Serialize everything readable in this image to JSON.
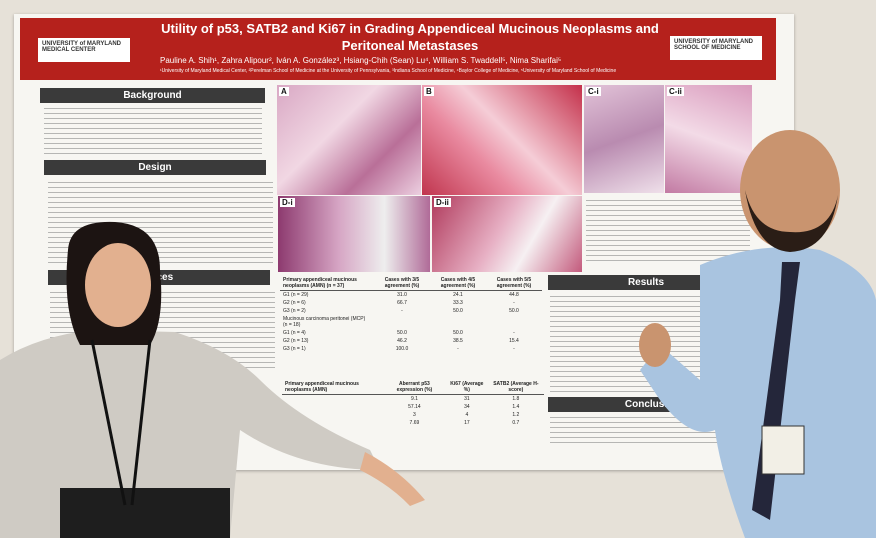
{
  "poster": {
    "title": "Utility of p53, SATB2 and Ki67 in Grading Appendiceal Mucinous Neoplasms and Peritoneal Metastases",
    "authors": "Pauline A. Shih¹, Zahra Alipour², Iván A. González³, Hsiang-Chih (Sean) Lu⁴, William S. Twaddell⁵, Nima Sharifai⁵",
    "affiliations": "¹University of Maryland Medical Center, ²Perelman School of Medicine at the University of Pennsylvania, ³Indiana School of Medicine, ⁴Baylor College of Medicine, ⁵University of Maryland School of Medicine",
    "logo_left": "UNIVERSITY of MARYLAND MEDICAL CENTER",
    "logo_right": "UNIVERSITY of MARYLAND SCHOOL OF MEDICINE",
    "sections": [
      "Background",
      "Design",
      "ences",
      "Results",
      "Conclusi"
    ],
    "panels": [
      "A",
      "B",
      "C-i",
      "C-ii",
      "D-i",
      "D-ii"
    ],
    "table1": {
      "header": [
        "Primary appendiceal mucinous neoplasms (AMN) (n = 37)",
        "Cases with 3/5 agreement (%)",
        "Cases with 4/5 agreement (%)",
        "Cases with 5/5 agreement (%)"
      ],
      "rows": [
        [
          "G1 (n = 29)",
          "31.0",
          "24.1",
          "44.8"
        ],
        [
          "G2 (n = 6)",
          "66.7",
          "33.3",
          "-"
        ],
        [
          "G3 (n = 2)",
          "-",
          "50.0",
          "50.0"
        ],
        [
          "Mucinous carcinoma peritonei (MCP) (n = 18)",
          "",
          "",
          ""
        ],
        [
          "G1 (n = 4)",
          "50.0",
          "50.0",
          "-"
        ],
        [
          "G2 (n = 13)",
          "46.2",
          "38.5",
          "15.4"
        ],
        [
          "G3 (n = 1)",
          "100.0",
          "-",
          "-"
        ]
      ]
    },
    "table2": {
      "header": [
        "Primary appendiceal mucinous neoplasms (AMN)",
        "Aberrant p53 expression (%)",
        "Ki67 (Average %)",
        "SATB2 (Average H-score)"
      ],
      "rows": [
        [
          "",
          "9.1",
          "31",
          "1.8"
        ],
        [
          "",
          "57.14",
          "34",
          "1.4"
        ],
        [
          "",
          "3",
          "4",
          "1.2"
        ],
        [
          "",
          "7.69",
          "17",
          "0.7"
        ]
      ]
    }
  }
}
